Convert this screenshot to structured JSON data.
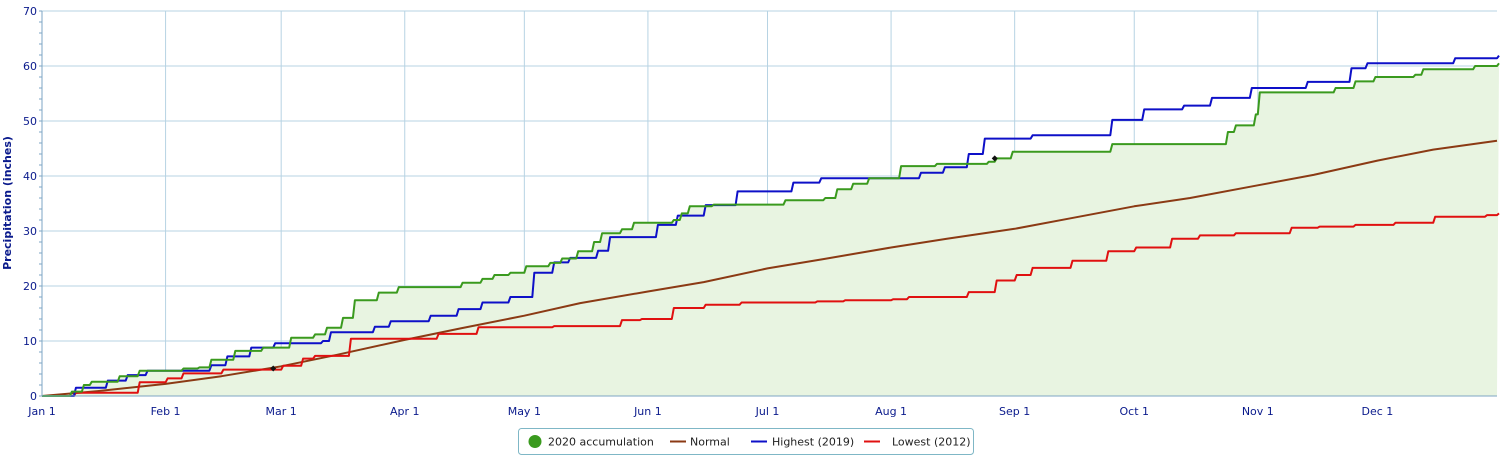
{
  "chart_data": {
    "type": "line",
    "title": "",
    "xlabel": "",
    "ylabel": "Precipitation (inches)",
    "ylim": [
      0,
      70
    ],
    "yticks": [
      0,
      10,
      20,
      30,
      40,
      50,
      60,
      70
    ],
    "x_domain": [
      "2020-01-01",
      "2020-12-31"
    ],
    "x_ticks": [
      {
        "label": "Jan 1",
        "date": "2020-01-01"
      },
      {
        "label": "Feb 1",
        "date": "2020-02-01"
      },
      {
        "label": "Mar 1",
        "date": "2020-03-01"
      },
      {
        "label": "Apr 1",
        "date": "2020-04-01"
      },
      {
        "label": "May 1",
        "date": "2020-05-01"
      },
      {
        "label": "Jun 1",
        "date": "2020-06-01"
      },
      {
        "label": "Jul 1",
        "date": "2020-07-01"
      },
      {
        "label": "Aug 1",
        "date": "2020-08-01"
      },
      {
        "label": "Sep 1",
        "date": "2020-09-01"
      },
      {
        "label": "Oct 1",
        "date": "2020-10-01"
      },
      {
        "label": "Nov 1",
        "date": "2020-11-01"
      },
      {
        "label": "Dec 1",
        "date": "2020-12-01"
      }
    ],
    "grid": true,
    "legend_position": "bottom-center",
    "series": [
      {
        "name": "2020 accumulation",
        "color": "#3a9a1e",
        "fill": "#e8f4e1",
        "legend_marker": "circle",
        "step": true,
        "points": [
          [
            "2020-01-01",
            0
          ],
          [
            "2020-01-08",
            0.8
          ],
          [
            "2020-01-11",
            2.0
          ],
          [
            "2020-01-13",
            2.6
          ],
          [
            "2020-01-20",
            3.6
          ],
          [
            "2020-01-25",
            4.6
          ],
          [
            "2020-02-05",
            5.0
          ],
          [
            "2020-02-09",
            5.2
          ],
          [
            "2020-02-12",
            6.6
          ],
          [
            "2020-02-18",
            8.2
          ],
          [
            "2020-02-25",
            8.8
          ],
          [
            "2020-03-03",
            10.6
          ],
          [
            "2020-03-09",
            11.2
          ],
          [
            "2020-03-12",
            12.4
          ],
          [
            "2020-03-16",
            14.2
          ],
          [
            "2020-03-19",
            17.4
          ],
          [
            "2020-03-25",
            18.8
          ],
          [
            "2020-03-30",
            19.8
          ],
          [
            "2020-04-15",
            20.6
          ],
          [
            "2020-04-20",
            21.3
          ],
          [
            "2020-04-23",
            22.0
          ],
          [
            "2020-04-27",
            22.4
          ],
          [
            "2020-05-01",
            23.6
          ],
          [
            "2020-05-07",
            24.2
          ],
          [
            "2020-05-10",
            25.0
          ],
          [
            "2020-05-14",
            26.3
          ],
          [
            "2020-05-18",
            28.0
          ],
          [
            "2020-05-20",
            29.6
          ],
          [
            "2020-05-25",
            30.3
          ],
          [
            "2020-05-28",
            31.5
          ],
          [
            "2020-06-07",
            32.0
          ],
          [
            "2020-06-09",
            33.2
          ],
          [
            "2020-06-11",
            34.5
          ],
          [
            "2020-06-17",
            34.8
          ],
          [
            "2020-07-05",
            35.6
          ],
          [
            "2020-07-15",
            36.0
          ],
          [
            "2020-07-18",
            37.6
          ],
          [
            "2020-07-22",
            38.6
          ],
          [
            "2020-07-26",
            39.6
          ],
          [
            "2020-08-03",
            41.8
          ],
          [
            "2020-08-12",
            42.2
          ],
          [
            "2020-08-25",
            42.6
          ],
          [
            "2020-08-27",
            43.2
          ],
          [
            "2020-08-31",
            44.4
          ],
          [
            "2020-09-25",
            45.8
          ],
          [
            "2020-10-24",
            48.0
          ],
          [
            "2020-10-26",
            49.2
          ],
          [
            "2020-10-31",
            51.2
          ],
          [
            "2020-11-01",
            55.2
          ],
          [
            "2020-11-20",
            56.0
          ],
          [
            "2020-11-25",
            57.2
          ],
          [
            "2020-11-30",
            58.0
          ],
          [
            "2020-12-10",
            58.4
          ],
          [
            "2020-12-12",
            59.4
          ],
          [
            "2020-12-25",
            60.0
          ],
          [
            "2020-12-31",
            60.5
          ]
        ]
      },
      {
        "name": "Normal",
        "color": "#8b3a14",
        "step": false,
        "points": [
          [
            "2020-01-01",
            0
          ],
          [
            "2020-01-15",
            0.9
          ],
          [
            "2020-02-01",
            2.2
          ],
          [
            "2020-02-15",
            3.6
          ],
          [
            "2020-03-01",
            5.4
          ],
          [
            "2020-03-15",
            7.5
          ],
          [
            "2020-04-01",
            10.2
          ],
          [
            "2020-04-15",
            12.3
          ],
          [
            "2020-05-01",
            14.6
          ],
          [
            "2020-05-15",
            16.9
          ],
          [
            "2020-06-01",
            19.0
          ],
          [
            "2020-06-15",
            20.7
          ],
          [
            "2020-07-01",
            23.2
          ],
          [
            "2020-07-15",
            24.9
          ],
          [
            "2020-08-01",
            27.0
          ],
          [
            "2020-08-15",
            28.6
          ],
          [
            "2020-09-01",
            30.4
          ],
          [
            "2020-09-15",
            32.3
          ],
          [
            "2020-10-01",
            34.5
          ],
          [
            "2020-10-15",
            36.0
          ],
          [
            "2020-11-01",
            38.3
          ],
          [
            "2020-11-15",
            40.2
          ],
          [
            "2020-12-01",
            42.8
          ],
          [
            "2020-12-15",
            44.8
          ],
          [
            "2020-12-31",
            46.4
          ]
        ]
      },
      {
        "name": "Highest (2019)",
        "color": "#0e10c8",
        "step": true,
        "points": [
          [
            "2020-01-01",
            0
          ],
          [
            "2020-01-09",
            1.5
          ],
          [
            "2020-01-17",
            2.8
          ],
          [
            "2020-01-22",
            3.8
          ],
          [
            "2020-01-27",
            4.6
          ],
          [
            "2020-02-12",
            5.6
          ],
          [
            "2020-02-16",
            7.2
          ],
          [
            "2020-02-22",
            8.8
          ],
          [
            "2020-02-28",
            9.6
          ],
          [
            "2020-03-11",
            10.0
          ],
          [
            "2020-03-13",
            11.6
          ],
          [
            "2020-03-24",
            12.6
          ],
          [
            "2020-03-28",
            13.6
          ],
          [
            "2020-04-07",
            14.6
          ],
          [
            "2020-04-14",
            15.8
          ],
          [
            "2020-04-20",
            17.0
          ],
          [
            "2020-04-27",
            18.0
          ],
          [
            "2020-05-03",
            22.4
          ],
          [
            "2020-05-08",
            24.3
          ],
          [
            "2020-05-12",
            25.1
          ],
          [
            "2020-05-19",
            26.4
          ],
          [
            "2020-05-22",
            28.9
          ],
          [
            "2020-06-03",
            31.1
          ],
          [
            "2020-06-08",
            32.8
          ],
          [
            "2020-06-15",
            34.7
          ],
          [
            "2020-06-23",
            37.2
          ],
          [
            "2020-07-07",
            38.8
          ],
          [
            "2020-07-14",
            39.6
          ],
          [
            "2020-08-08",
            40.6
          ],
          [
            "2020-08-14",
            41.6
          ],
          [
            "2020-08-20",
            44.0
          ],
          [
            "2020-08-24",
            46.8
          ],
          [
            "2020-09-05",
            47.4
          ],
          [
            "2020-09-25",
            50.2
          ],
          [
            "2020-10-03",
            52.1
          ],
          [
            "2020-10-13",
            52.8
          ],
          [
            "2020-10-20",
            54.2
          ],
          [
            "2020-10-30",
            56.0
          ],
          [
            "2020-11-13",
            57.1
          ],
          [
            "2020-11-24",
            59.6
          ],
          [
            "2020-11-28",
            60.5
          ],
          [
            "2020-12-20",
            61.4
          ],
          [
            "2020-12-31",
            61.9
          ]
        ]
      },
      {
        "name": "Lowest (2012)",
        "color": "#e01010",
        "step": true,
        "points": [
          [
            "2020-01-01",
            0
          ],
          [
            "2020-01-09",
            0.6
          ],
          [
            "2020-01-25",
            2.5
          ],
          [
            "2020-02-01",
            3.2
          ],
          [
            "2020-02-05",
            4.1
          ],
          [
            "2020-02-15",
            4.8
          ],
          [
            "2020-03-01",
            5.5
          ],
          [
            "2020-03-06",
            6.8
          ],
          [
            "2020-03-09",
            7.3
          ],
          [
            "2020-03-18",
            10.4
          ],
          [
            "2020-04-09",
            11.3
          ],
          [
            "2020-04-19",
            12.5
          ],
          [
            "2020-05-08",
            12.7
          ],
          [
            "2020-05-25",
            13.8
          ],
          [
            "2020-05-30",
            14.0
          ],
          [
            "2020-06-07",
            16.0
          ],
          [
            "2020-06-15",
            16.6
          ],
          [
            "2020-06-24",
            17.0
          ],
          [
            "2020-07-13",
            17.2
          ],
          [
            "2020-07-20",
            17.4
          ],
          [
            "2020-08-01",
            17.6
          ],
          [
            "2020-08-05",
            18.0
          ],
          [
            "2020-08-20",
            18.9
          ],
          [
            "2020-08-27",
            21.0
          ],
          [
            "2020-09-01",
            22.0
          ],
          [
            "2020-09-05",
            23.3
          ],
          [
            "2020-09-15",
            24.6
          ],
          [
            "2020-09-24",
            26.3
          ],
          [
            "2020-10-01",
            27.0
          ],
          [
            "2020-10-10",
            28.6
          ],
          [
            "2020-10-17",
            29.2
          ],
          [
            "2020-10-26",
            29.6
          ],
          [
            "2020-11-09",
            30.6
          ],
          [
            "2020-11-16",
            30.8
          ],
          [
            "2020-11-25",
            31.1
          ],
          [
            "2020-12-05",
            31.5
          ],
          [
            "2020-12-15",
            32.6
          ],
          [
            "2020-12-28",
            32.9
          ],
          [
            "2020-12-31",
            33.2
          ]
        ]
      }
    ],
    "annotations": [
      {
        "date": "2020-02-28",
        "value": 5.0
      },
      {
        "date": "2020-08-27",
        "value": 43.2
      }
    ]
  }
}
